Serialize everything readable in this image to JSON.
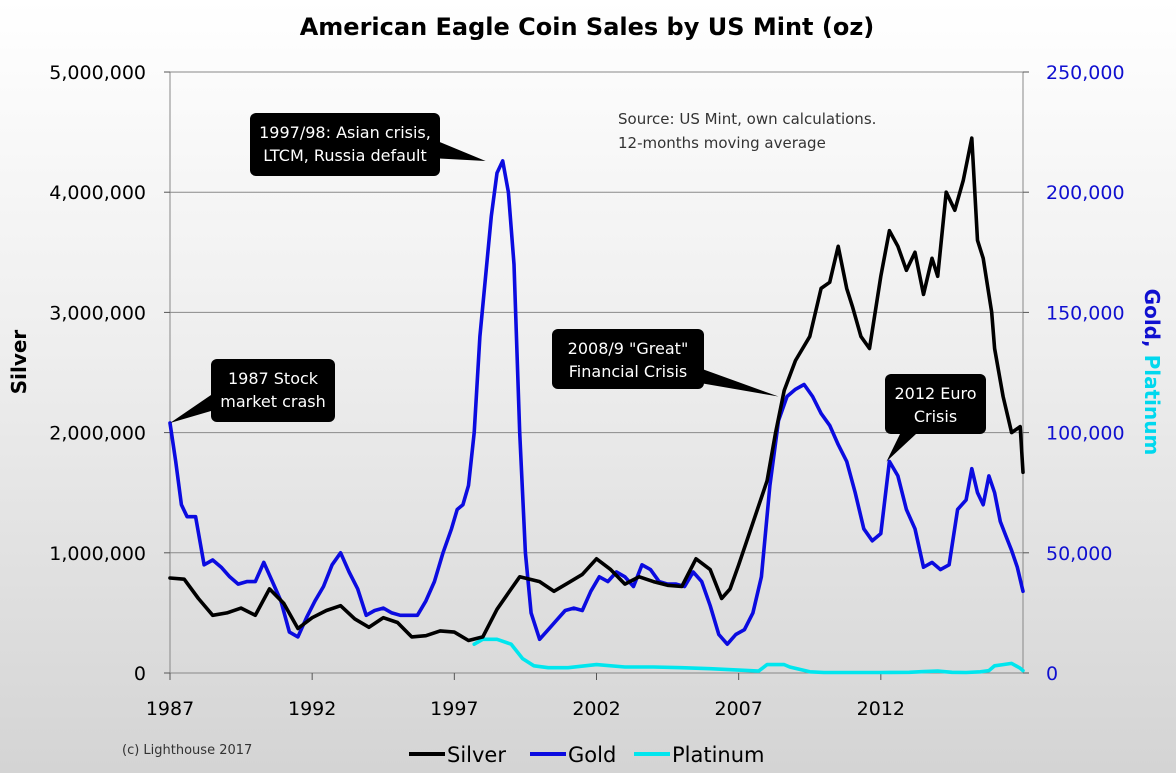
{
  "chart_data": {
    "type": "line",
    "title": "American Eagle Coin Sales by US Mint (oz)",
    "ylabel_left": "Silver",
    "ylabel_right_part1": "Gold,",
    "ylabel_right_part2": "Platinum",
    "xlim": [
      1987,
      2017
    ],
    "ylim_left": [
      0,
      5000000
    ],
    "ylim_right": [
      0,
      250000
    ],
    "x_ticks": [
      1987,
      1992,
      1997,
      2002,
      2007,
      2012
    ],
    "x_tick_labels": [
      "1987",
      "1992",
      "1997",
      "2002",
      "2007",
      "2012"
    ],
    "y_left_ticks": [
      0,
      1000000,
      2000000,
      3000000,
      4000000,
      5000000
    ],
    "y_left_tick_labels": [
      "0",
      "1,000,000",
      "2,000,000",
      "3,000,000",
      "4,000,000",
      "5,000,000"
    ],
    "y_right_ticks": [
      0,
      50000,
      100000,
      150000,
      200000,
      250000
    ],
    "y_right_tick_labels": [
      "0",
      "50,000",
      "100,000",
      "150,000",
      "200,000",
      "250,000"
    ],
    "grid": "horizontal",
    "legend_position": "bottom",
    "note_line1": "Source: US Mint, own calculations.",
    "note_line2": "12-months moving average",
    "copyright": "(c) Lighthouse 2017",
    "series": [
      {
        "name": "Silver",
        "axis": "left",
        "color": "#000000",
        "x": [
          1987.0,
          1987.5,
          1988.0,
          1988.5,
          1989.0,
          1989.5,
          1990.0,
          1990.5,
          1991.0,
          1991.5,
          1992.0,
          1992.5,
          1993.0,
          1993.5,
          1994.0,
          1994.5,
          1995.0,
          1995.5,
          1996.0,
          1996.5,
          1997.0,
          1997.5,
          1998.0,
          1998.5,
          1999.0,
          1999.3,
          2000.0,
          2000.5,
          2001.0,
          2001.5,
          2002.0,
          2002.5,
          2003.0,
          2003.5,
          2004.0,
          2004.5,
          2005.0,
          2005.5,
          2006.0,
          2006.4,
          2006.7,
          2007.0,
          2007.5,
          2008.0,
          2008.3,
          2008.6,
          2009.0,
          2009.5,
          2009.9,
          2010.2,
          2010.5,
          2010.8,
          2011.0,
          2011.3,
          2011.6,
          2012.0,
          2012.3,
          2012.6,
          2012.9,
          2013.2,
          2013.5,
          2013.8,
          2014.0,
          2014.3,
          2014.6,
          2014.9,
          2015.2,
          2015.4,
          2015.6,
          2015.9,
          2016.0,
          2016.3,
          2016.6,
          2016.9,
          2017.0
        ],
        "values": [
          790000,
          780000,
          620000,
          480000,
          500000,
          540000,
          480000,
          700000,
          580000,
          370000,
          460000,
          520000,
          560000,
          450000,
          380000,
          460000,
          420000,
          300000,
          310000,
          350000,
          340000,
          270000,
          300000,
          530000,
          700000,
          800000,
          760000,
          680000,
          750000,
          820000,
          950000,
          860000,
          740000,
          800000,
          760000,
          730000,
          720000,
          950000,
          860000,
          620000,
          700000,
          900000,
          1250000,
          1600000,
          2000000,
          2350000,
          2600000,
          2800000,
          3200000,
          3250000,
          3550000,
          3200000,
          3050000,
          2800000,
          2700000,
          3300000,
          3680000,
          3550000,
          3350000,
          3500000,
          3150000,
          3450000,
          3300000,
          4000000,
          3850000,
          4100000,
          4450000,
          3600000,
          3450000,
          3000000,
          2700000,
          2300000,
          2000000,
          2050000,
          1670000
        ]
      },
      {
        "name": "Gold",
        "axis": "right",
        "color": "#0b0be0",
        "x": [
          1987.0,
          1987.2,
          1987.4,
          1987.6,
          1987.9,
          1988.2,
          1988.5,
          1988.8,
          1989.1,
          1989.4,
          1989.7,
          1990.0,
          1990.3,
          1990.6,
          1990.9,
          1991.2,
          1991.5,
          1991.8,
          1992.1,
          1992.4,
          1992.7,
          1993.0,
          1993.3,
          1993.6,
          1993.9,
          1994.2,
          1994.5,
          1994.8,
          1995.1,
          1995.4,
          1995.7,
          1996.0,
          1996.3,
          1996.6,
          1996.9,
          1997.1,
          1997.3,
          1997.5,
          1997.7,
          1997.9,
          1998.1,
          1998.3,
          1998.5,
          1998.7,
          1998.9,
          1999.1,
          1999.3,
          1999.5,
          1999.7,
          2000.0,
          2000.3,
          2000.6,
          2000.9,
          2001.2,
          2001.5,
          2001.8,
          2002.1,
          2002.4,
          2002.7,
          2003.0,
          2003.3,
          2003.6,
          2003.9,
          2004.2,
          2004.5,
          2004.8,
          2005.1,
          2005.4,
          2005.7,
          2006.0,
          2006.3,
          2006.6,
          2006.9,
          2007.2,
          2007.5,
          2007.8,
          2008.1,
          2008.4,
          2008.7,
          2009.0,
          2009.3,
          2009.6,
          2009.9,
          2010.2,
          2010.5,
          2010.8,
          2011.1,
          2011.4,
          2011.7,
          2012.0,
          2012.3,
          2012.6,
          2012.9,
          2013.2,
          2013.5,
          2013.8,
          2014.1,
          2014.4,
          2014.7,
          2015.0,
          2015.2,
          2015.4,
          2015.6,
          2015.8,
          2016.0,
          2016.2,
          2016.4,
          2016.6,
          2016.8,
          2017.0
        ],
        "values": [
          104000,
          88000,
          70000,
          65000,
          65000,
          45000,
          47000,
          44000,
          40000,
          37000,
          38000,
          38000,
          46000,
          38000,
          30000,
          17000,
          15000,
          23000,
          30000,
          36000,
          45000,
          50000,
          42000,
          35000,
          24000,
          26000,
          27000,
          25000,
          24000,
          24000,
          24000,
          30000,
          38000,
          50000,
          60000,
          68000,
          70000,
          78000,
          100000,
          140000,
          165000,
          190000,
          208000,
          213000,
          200000,
          170000,
          100000,
          50000,
          25000,
          14000,
          18000,
          22000,
          26000,
          27000,
          26000,
          34000,
          40000,
          38000,
          42000,
          40000,
          36000,
          45000,
          43000,
          38000,
          37000,
          37000,
          36000,
          42000,
          38000,
          28000,
          16000,
          12000,
          16000,
          18000,
          25000,
          40000,
          78000,
          105000,
          115000,
          118000,
          120000,
          115000,
          108000,
          103000,
          95000,
          88000,
          75000,
          60000,
          55000,
          58000,
          88000,
          82000,
          68000,
          60000,
          44000,
          46000,
          43000,
          45000,
          68000,
          72000,
          85000,
          75000,
          70000,
          82000,
          75000,
          63000,
          57000,
          51000,
          44000,
          34000
        ]
      },
      {
        "name": "Platinum",
        "axis": "right",
        "color": "#00e6ee",
        "x": [
          1997.7,
          1998.0,
          1998.5,
          1999.0,
          1999.4,
          1999.8,
          2000.3,
          2001.0,
          2002.0,
          2003.0,
          2004.0,
          2005.0,
          2006.0,
          2007.0,
          2007.7,
          2008.0,
          2008.6,
          2008.8,
          2009.5,
          2010.0,
          2011.0,
          2012.0,
          2013.0,
          2013.5,
          2014.0,
          2014.5,
          2015.0,
          2015.5,
          2015.8,
          2016.0,
          2016.3,
          2016.6,
          2016.9,
          2017.0
        ],
        "values": [
          12000,
          14000,
          14000,
          12000,
          6000,
          3000,
          2200,
          2200,
          3500,
          2500,
          2500,
          2200,
          1800,
          1200,
          800,
          3500,
          3500,
          2500,
          500,
          200,
          200,
          200,
          300,
          600,
          800,
          300,
          200,
          500,
          1000,
          3000,
          3500,
          4000,
          2000,
          1000
        ]
      }
    ],
    "annotations": [
      {
        "line1": "1987 Stock",
        "line2": "market crash",
        "x": 1987.0,
        "y_right": 104000
      },
      {
        "line1": "1997/98: Asian crisis,",
        "line2": "LTCM, Russia default",
        "x": 1998.1,
        "y_right": 213000
      },
      {
        "line1": "2008/9 \"Great\"",
        "line2": "Financial Crisis",
        "x": 2008.4,
        "y_right": 115000
      },
      {
        "line1": "2012 Euro",
        "line2": "Crisis",
        "x": 2012.2,
        "y_right": 88000
      }
    ]
  }
}
